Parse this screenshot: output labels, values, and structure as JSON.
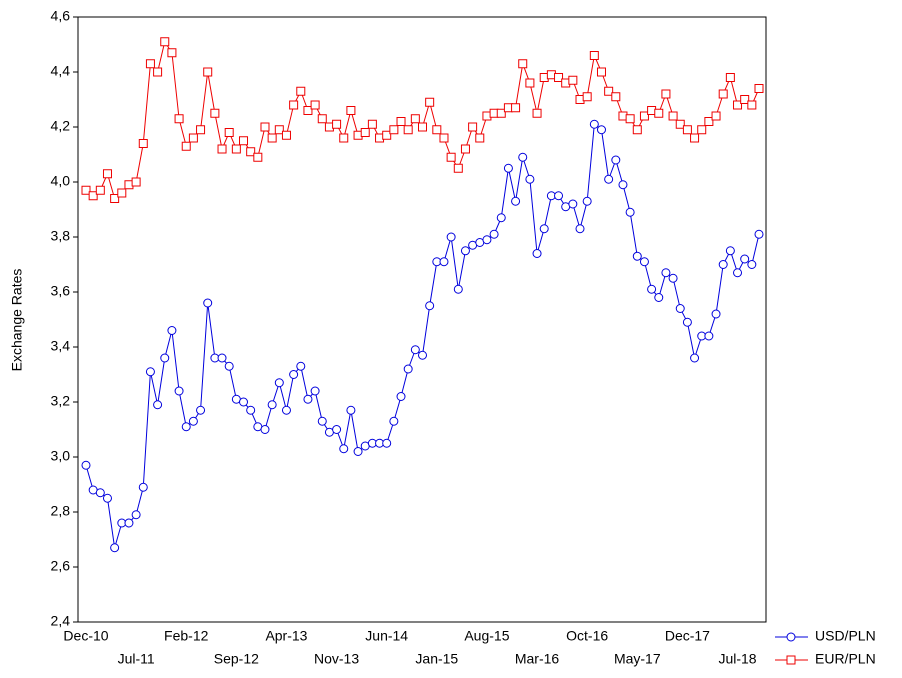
{
  "chart_data": {
    "type": "line",
    "y_label": "Exchange Rates",
    "categories": [
      "Dec-10",
      null,
      null,
      null,
      null,
      null,
      null,
      "Jul-11",
      null,
      null,
      null,
      null,
      null,
      null,
      "Feb-12",
      null,
      null,
      null,
      null,
      null,
      null,
      "Sep-12",
      null,
      null,
      null,
      null,
      null,
      null,
      "Apr-13",
      null,
      null,
      null,
      null,
      null,
      null,
      "Nov-13",
      null,
      null,
      null,
      null,
      null,
      null,
      "Jun-14",
      null,
      null,
      null,
      null,
      null,
      null,
      "Jan-15",
      null,
      null,
      null,
      null,
      null,
      null,
      "Aug-15",
      null,
      null,
      null,
      null,
      null,
      null,
      "Mar-16",
      null,
      null,
      null,
      null,
      null,
      null,
      "Oct-16",
      null,
      null,
      null,
      null,
      null,
      null,
      "May-17",
      null,
      null,
      null,
      null,
      null,
      null,
      "Dec-17",
      null,
      null,
      null,
      null,
      null,
      null,
      "Jul-18",
      null,
      null,
      null
    ],
    "series": [
      {
        "name": "USD/PLN",
        "color": "#0000dd",
        "marker": "circle",
        "values": [
          2.97,
          2.88,
          2.87,
          2.85,
          2.67,
          2.76,
          2.76,
          2.79,
          2.89,
          3.31,
          3.19,
          3.36,
          3.46,
          3.24,
          3.11,
          3.13,
          3.17,
          3.56,
          3.36,
          3.36,
          3.33,
          3.21,
          3.2,
          3.17,
          3.11,
          3.1,
          3.19,
          3.27,
          3.17,
          3.3,
          3.33,
          3.21,
          3.24,
          3.13,
          3.09,
          3.1,
          3.03,
          3.17,
          3.02,
          3.04,
          3.05,
          3.05,
          3.05,
          3.13,
          3.22,
          3.32,
          3.39,
          3.37,
          3.55,
          3.71,
          3.71,
          3.8,
          3.61,
          3.75,
          3.77,
          3.78,
          3.79,
          3.81,
          3.87,
          4.05,
          3.93,
          4.09,
          4.01,
          3.74,
          3.83,
          3.95,
          3.95,
          3.91,
          3.92,
          3.83,
          3.93,
          4.21,
          4.19,
          4.01,
          4.08,
          3.99,
          3.89,
          3.73,
          3.71,
          3.61,
          3.58,
          3.67,
          3.65,
          3.54,
          3.49,
          3.36,
          3.44,
          3.44,
          3.52,
          3.7,
          3.75,
          3.67,
          3.72,
          3.7,
          3.81
        ]
      },
      {
        "name": "EUR/PLN",
        "color": "#ee0000",
        "marker": "square",
        "values": [
          3.97,
          3.95,
          3.97,
          4.03,
          3.94,
          3.96,
          3.99,
          4.0,
          4.14,
          4.43,
          4.4,
          4.51,
          4.47,
          4.23,
          4.13,
          4.16,
          4.19,
          4.4,
          4.25,
          4.12,
          4.18,
          4.12,
          4.15,
          4.11,
          4.09,
          4.2,
          4.16,
          4.19,
          4.17,
          4.28,
          4.33,
          4.26,
          4.28,
          4.23,
          4.2,
          4.21,
          4.16,
          4.26,
          4.17,
          4.18,
          4.21,
          4.16,
          4.17,
          4.19,
          4.22,
          4.19,
          4.23,
          4.2,
          4.29,
          4.19,
          4.16,
          4.09,
          4.05,
          4.12,
          4.2,
          4.16,
          4.24,
          4.25,
          4.25,
          4.27,
          4.27,
          4.43,
          4.36,
          4.25,
          4.38,
          4.39,
          4.38,
          4.36,
          4.37,
          4.3,
          4.31,
          4.46,
          4.4,
          4.33,
          4.31,
          4.24,
          4.23,
          4.19,
          4.24,
          4.26,
          4.25,
          4.32,
          4.24,
          4.21,
          4.19,
          4.16,
          4.19,
          4.22,
          4.24,
          4.32,
          4.38,
          4.28,
          4.3,
          4.28,
          4.34
        ]
      }
    ],
    "ylim": [
      2.4,
      4.6
    ],
    "yticks": [
      {
        "value": 2.4,
        "label": "2,4"
      },
      {
        "value": 2.6,
        "label": "2,6"
      },
      {
        "value": 2.8,
        "label": "2,8"
      },
      {
        "value": 3.0,
        "label": "3,0"
      },
      {
        "value": 3.2,
        "label": "3,2"
      },
      {
        "value": 3.4,
        "label": "3,4"
      },
      {
        "value": 3.6,
        "label": "3,6"
      },
      {
        "value": 3.8,
        "label": "3,8"
      },
      {
        "value": 4.0,
        "label": "4,0"
      },
      {
        "value": 4.2,
        "label": "4,2"
      },
      {
        "value": 4.4,
        "label": "4,4"
      },
      {
        "value": 4.6,
        "label": "4,6"
      }
    ],
    "grid": false
  }
}
